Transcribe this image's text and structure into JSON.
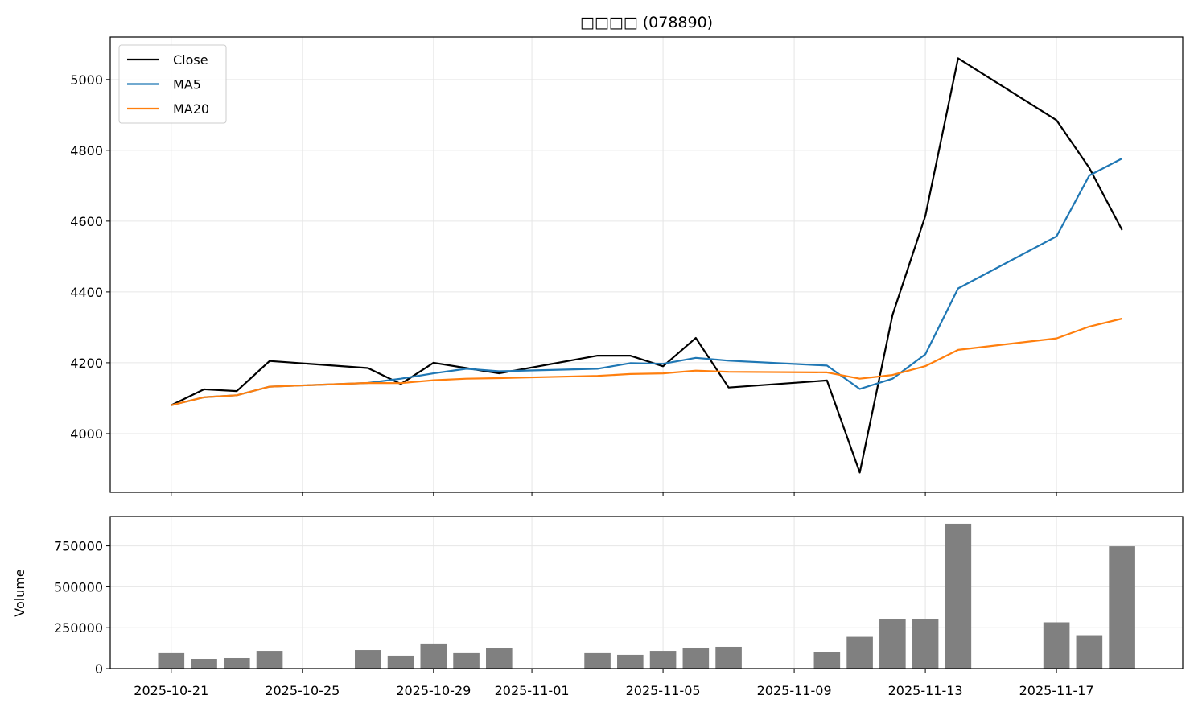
{
  "chart_data": [
    {
      "type": "line",
      "title": "□□□□ (078890)",
      "xlabel": "",
      "ylabel": "",
      "ylim": [
        3834,
        5120
      ],
      "yticks": [
        4000,
        4200,
        4400,
        4600,
        4800,
        5000
      ],
      "grid": true,
      "legend_position": "top-left",
      "dates": [
        "2025-10-21",
        "2025-10-22",
        "2025-10-23",
        "2025-10-24",
        "2025-10-27",
        "2025-10-28",
        "2025-10-29",
        "2025-10-30",
        "2025-10-31",
        "2025-11-03",
        "2025-11-04",
        "2025-11-05",
        "2025-11-06",
        "2025-11-07",
        "2025-11-10",
        "2025-11-11",
        "2025-11-12",
        "2025-11-13",
        "2025-11-14",
        "2025-11-17",
        "2025-11-18",
        "2025-11-19"
      ],
      "series": [
        {
          "name": "Close",
          "color": "#000000",
          "values": [
            4080,
            4125,
            4120,
            4205,
            4185,
            4140,
            4200,
            4185,
            4170,
            4220,
            4220,
            4190,
            4270,
            4130,
            4150,
            3890,
            4335,
            4615,
            5060,
            4885,
            4750,
            4575
          ]
        },
        {
          "name": "MA5",
          "color": "#1f77b4",
          "values": [
            4080,
            4102.5,
            4108.3,
            4132.5,
            4143,
            4155,
            4170,
            4183,
            4176,
            4183,
            4199,
            4197,
            4214,
            4206,
            4192,
            4126,
            4155,
            4224,
            4410,
            4557,
            4729,
            4777
          ]
        },
        {
          "name": "MA20",
          "color": "#ff7f0e",
          "values": [
            4080,
            4102.5,
            4108.3,
            4132.5,
            4143,
            4142.5,
            4150.7,
            4155,
            4156.7,
            4163,
            4168.2,
            4170,
            4177.7,
            4174.3,
            4172.7,
            4155,
            4165.6,
            4190.6,
            4236.3,
            4268.8,
            4302.3,
            4324.8
          ]
        }
      ]
    },
    {
      "type": "bar",
      "ylabel": "Volume",
      "ylim": [
        0,
        930000
      ],
      "yticks": [
        0,
        250000,
        500000,
        750000
      ],
      "grid": true,
      "color": "#808080",
      "xticks": [
        "2025-10-21",
        "2025-10-25",
        "2025-10-29",
        "2025-11-01",
        "2025-11-05",
        "2025-11-09",
        "2025-11-13",
        "2025-11-17"
      ],
      "values": [
        94000,
        59000,
        64000,
        108000,
        113000,
        79000,
        153000,
        94000,
        123000,
        94000,
        84000,
        108000,
        128000,
        133000,
        100000,
        194000,
        303000,
        303000,
        886000,
        283000,
        204000,
        747500
      ]
    }
  ]
}
